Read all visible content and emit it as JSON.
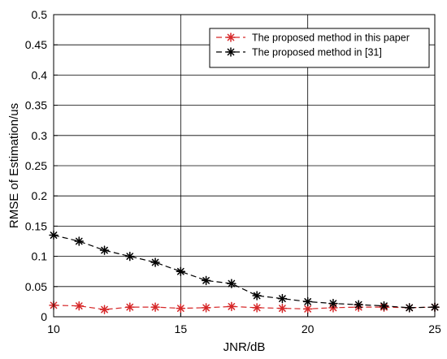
{
  "chart_data": {
    "type": "line",
    "title": "",
    "xlabel": "JNR/dB",
    "ylabel": "RMSE of Estimation/us",
    "xlim": [
      10,
      25
    ],
    "ylim": [
      0,
      0.5
    ],
    "xticks": [
      10,
      15,
      20,
      25
    ],
    "yticks": [
      0,
      0.05,
      0.1,
      0.15,
      0.2,
      0.25,
      0.3,
      0.35,
      0.4,
      0.45,
      0.5
    ],
    "xtick_labels": [
      "10",
      "15",
      "20",
      "25"
    ],
    "ytick_labels": [
      "0",
      "0.05",
      "0.1",
      "0.15",
      "0.2",
      "0.25",
      "0.3",
      "0.35",
      "0.4",
      "0.45",
      "0.5"
    ],
    "grid": true,
    "legend_position": "top-right",
    "x": [
      10,
      11,
      12,
      13,
      14,
      15,
      16,
      17,
      18,
      19,
      20,
      21,
      22,
      23,
      24,
      25
    ],
    "series": [
      {
        "name": "The proposed method in this paper",
        "color": "#d62728",
        "marker": "asterisk",
        "line_style": "dashed",
        "values": [
          0.019,
          0.018,
          0.012,
          0.016,
          0.016,
          0.014,
          0.015,
          0.017,
          0.015,
          0.014,
          0.013,
          0.015,
          0.016,
          0.016,
          0.015,
          0.016
        ]
      },
      {
        "name": "The proposed method in [31]",
        "color": "#000000",
        "marker": "asterisk",
        "line_style": "dashed",
        "values": [
          0.135,
          0.125,
          0.11,
          0.1,
          0.09,
          0.075,
          0.06,
          0.055,
          0.035,
          0.03,
          0.025,
          0.022,
          0.02,
          0.018,
          0.015,
          0.016
        ]
      }
    ]
  }
}
